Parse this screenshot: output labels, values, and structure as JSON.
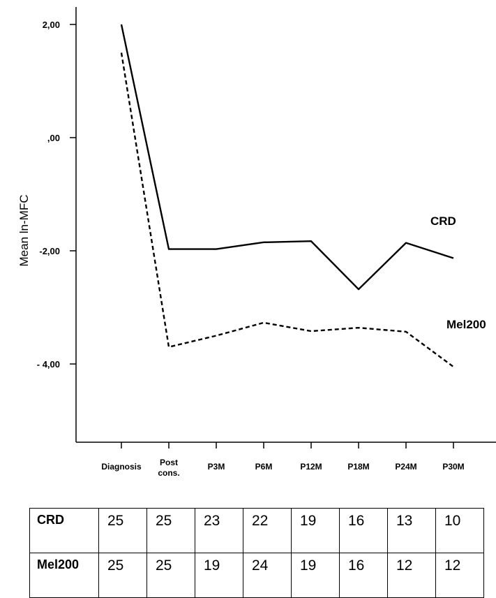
{
  "chart_data": {
    "type": "line",
    "ylabel": "Mean  ln-MFC",
    "xlabel": "",
    "categories": [
      "Diagnosis",
      "Post cons.",
      "P3M",
      "P6M",
      "P12M",
      "P18M",
      "P24M",
      "P30M"
    ],
    "y_tick_labels": [
      "2,00",
      ",00",
      "-2,00",
      "- 4,00"
    ],
    "y_ticks": [
      2,
      0,
      -2,
      -4
    ],
    "ylim": [
      -5.4,
      2.3
    ],
    "grid": false,
    "series": [
      {
        "name": "CRD",
        "line_style": "solid",
        "color": "#000000",
        "values": [
          2.0,
          -1.97,
          -1.97,
          -1.85,
          -1.83,
          -2.68,
          -1.86,
          -2.13
        ]
      },
      {
        "name": "Mel200",
        "line_style": "dashed",
        "color": "#000000",
        "values": [
          1.5,
          -3.7,
          -3.5,
          -3.27,
          -3.42,
          -3.36,
          -3.43,
          -4.05
        ]
      }
    ]
  },
  "table": {
    "rows": [
      {
        "label": "CRD",
        "counts": [
          "25",
          "25",
          "23",
          "22",
          "19",
          "16",
          "13",
          "10"
        ]
      },
      {
        "label": "Mel200",
        "counts": [
          "25",
          "25",
          "19",
          "24",
          "19",
          "16",
          "12",
          "12"
        ]
      }
    ]
  }
}
